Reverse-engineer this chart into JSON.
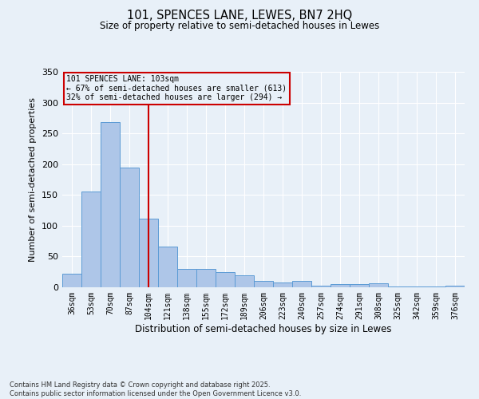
{
  "title": "101, SPENCES LANE, LEWES, BN7 2HQ",
  "subtitle": "Size of property relative to semi-detached houses in Lewes",
  "xlabel": "Distribution of semi-detached houses by size in Lewes",
  "ylabel": "Number of semi-detached properties",
  "categories": [
    "36sqm",
    "53sqm",
    "70sqm",
    "87sqm",
    "104sqm",
    "121sqm",
    "138sqm",
    "155sqm",
    "172sqm",
    "189sqm",
    "206sqm",
    "223sqm",
    "240sqm",
    "257sqm",
    "274sqm",
    "291sqm",
    "308sqm",
    "325sqm",
    "342sqm",
    "359sqm",
    "376sqm"
  ],
  "values": [
    22,
    155,
    268,
    194,
    112,
    66,
    30,
    30,
    24,
    20,
    10,
    8,
    10,
    3,
    5,
    5,
    6,
    1,
    1,
    1,
    2
  ],
  "bar_color": "#aec6e8",
  "bar_edge_color": "#5b9bd5",
  "highlight_index": 4,
  "annotation_title": "101 SPENCES LANE: 103sqm",
  "annotation_line1": "← 67% of semi-detached houses are smaller (613)",
  "annotation_line2": "32% of semi-detached houses are larger (294) →",
  "vline_color": "#cc0000",
  "box_color": "#cc0000",
  "background_color": "#e8f0f8",
  "grid_color": "#ffffff",
  "ylim": [
    0,
    350
  ],
  "yticks": [
    0,
    50,
    100,
    150,
    200,
    250,
    300,
    350
  ],
  "footer_line1": "Contains HM Land Registry data © Crown copyright and database right 2025.",
  "footer_line2": "Contains public sector information licensed under the Open Government Licence v3.0."
}
